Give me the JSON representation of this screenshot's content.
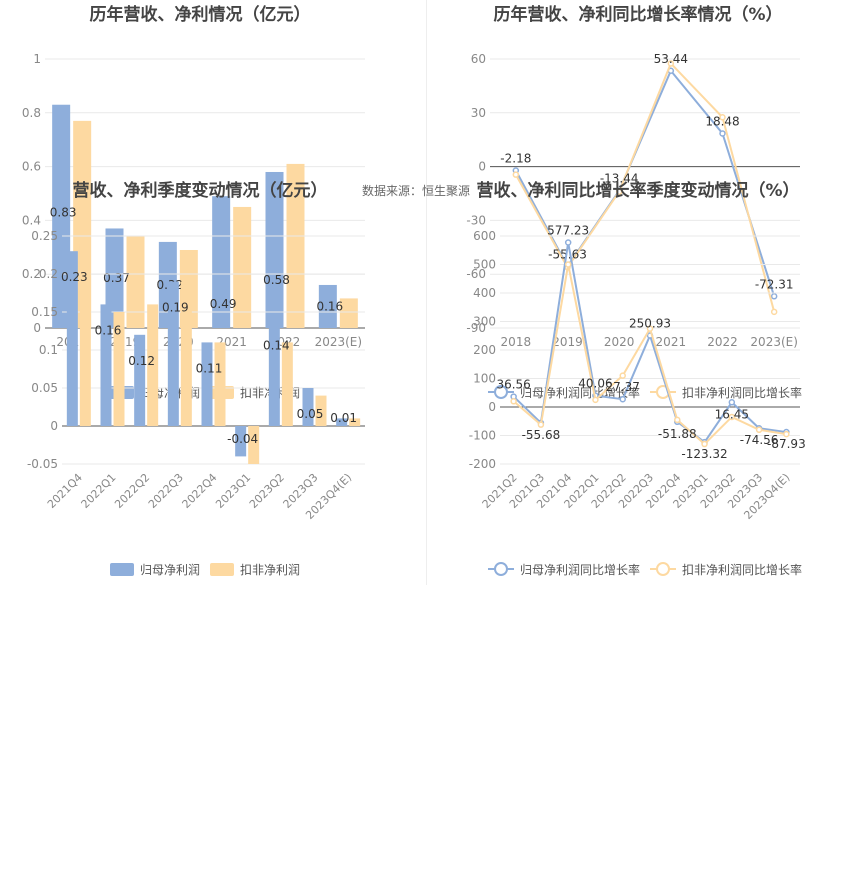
{
  "source_note": "数据来源：恒生聚源",
  "colors": {
    "blue": "#8eaedb",
    "orange": "#fdd9a1",
    "grid": "#e9e9e9",
    "axis": "#555555",
    "tick": "#888888",
    "label": "#333333",
    "title": "#444444"
  },
  "chart_data": [
    {
      "id": "annual-profit",
      "type": "bar",
      "title": "历年营收、净利情况（亿元）",
      "categories": [
        "2018",
        "2019",
        "2020",
        "2021",
        "2022",
        "2023(E)"
      ],
      "series": [
        {
          "name": "归母净利润",
          "values": [
            0.83,
            0.37,
            0.32,
            0.49,
            0.58,
            0.16
          ],
          "labels": [
            "0.83",
            "0.37",
            "0.32",
            "0.49",
            "0.58",
            "0.16"
          ]
        },
        {
          "name": "扣非净利润",
          "values": [
            0.77,
            0.34,
            0.29,
            0.45,
            0.61,
            0.11
          ],
          "labels": []
        }
      ],
      "yticks": [
        0,
        0.2,
        0.4,
        0.6,
        0.8,
        1
      ],
      "ylim": [
        0,
        1
      ],
      "legend": "bottom"
    },
    {
      "id": "annual-growth",
      "type": "line",
      "title": "历年营收、净利同比增长率情况（%）",
      "categories": [
        "2018",
        "2019",
        "2020",
        "2021",
        "2022",
        "2023(E)"
      ],
      "series": [
        {
          "name": "归母净利润同比增长率",
          "values": [
            -2.18,
            -55.63,
            -13.44,
            53.44,
            18.48,
            -72.31
          ],
          "labels": [
            "-2.18",
            "-55.63",
            "-13.44",
            "53.44",
            "18.48",
            "-72.31"
          ]
        },
        {
          "name": "扣非净利润同比增长率",
          "values": [
            -4.5,
            -56.2,
            -14.0,
            57.5,
            27.5,
            -81.0
          ],
          "labels": []
        }
      ],
      "yticks": [
        -90,
        -60,
        -30,
        0,
        30,
        60
      ],
      "ylim": [
        -90,
        60
      ],
      "legend": "bottom"
    },
    {
      "id": "quarter-profit",
      "type": "bar",
      "title": "营收、净利季度变动情况（亿元）",
      "categories": [
        "2021Q4",
        "2022Q1",
        "2022Q2",
        "2022Q3",
        "2022Q4",
        "2023Q1",
        "2023Q2",
        "2023Q3",
        "2023Q4(E)"
      ],
      "series": [
        {
          "name": "归母净利润",
          "values": [
            0.23,
            0.16,
            0.12,
            0.19,
            0.11,
            -0.04,
            0.14,
            0.05,
            0.01
          ],
          "labels": [
            "0.23",
            "0.16",
            "0.12",
            "0.19",
            "0.11",
            "-0.04",
            "0.14",
            "0.05",
            "0.01"
          ]
        },
        {
          "name": "扣非净利润",
          "values": [
            0.24,
            0.15,
            0.16,
            0.19,
            0.11,
            -0.05,
            0.11,
            0.04,
            0.01
          ],
          "labels": []
        }
      ],
      "yticks": [
        -0.05,
        0,
        0.05,
        0.1,
        0.15,
        0.2,
        0.25
      ],
      "ylim": [
        -0.05,
        0.25
      ],
      "legend": "bottom"
    },
    {
      "id": "quarter-growth",
      "type": "line",
      "title": "营收、净利同比增长率季度变动情况（%）",
      "categories": [
        "2021Q2",
        "2021Q3",
        "2021Q4",
        "2022Q1",
        "2022Q2",
        "2022Q3",
        "2022Q4",
        "2023Q1",
        "2023Q2",
        "2023Q3",
        "2023Q4(E)"
      ],
      "series": [
        {
          "name": "归母净利润同比增长率",
          "values": [
            36.56,
            -55.68,
            577.23,
            40.06,
            27.37,
            250.93,
            -51.88,
            -123.32,
            16.45,
            -74.56,
            -87.93
          ],
          "labels": [
            "36.56",
            "-55.68",
            "577.23",
            "40.06",
            "27.37",
            "250.93",
            "-51.88",
            "-123.32",
            "16.45",
            "-74.56",
            "-87.93"
          ]
        },
        {
          "name": "扣非净利润同比增长率",
          "values": [
            20,
            -62,
            500,
            25,
            110,
            275,
            -45,
            -130,
            -35,
            -80,
            -95
          ],
          "labels": []
        }
      ],
      "yticks": [
        -200,
        -100,
        0,
        100,
        200,
        300,
        400,
        500,
        600
      ],
      "ylim": [
        -200,
        600
      ],
      "legend": "bottom"
    }
  ]
}
